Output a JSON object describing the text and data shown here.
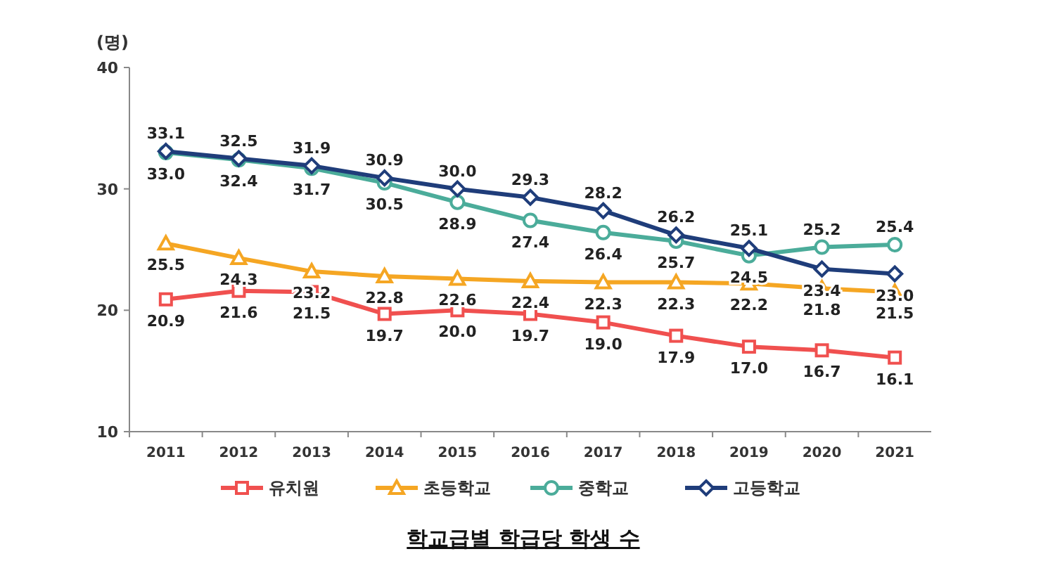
{
  "chart_data": {
    "type": "line",
    "title": "학교급별 학급당 학생 수",
    "ylabel": "(명)",
    "categories": [
      "2011",
      "2012",
      "2013",
      "2014",
      "2015",
      "2016",
      "2017",
      "2018",
      "2019",
      "2020",
      "2021"
    ],
    "series": [
      {
        "name": "유치원",
        "color": "#f0504f",
        "marker": "square",
        "values": [
          20.9,
          21.6,
          21.5,
          19.7,
          20.0,
          19.7,
          19.0,
          17.9,
          17.0,
          16.7,
          16.1
        ],
        "value_labels": [
          "20.9",
          "21.6",
          "21.5",
          "19.7",
          "20.0",
          "19.7",
          "19.0",
          "17.9",
          "17.0",
          "16.7",
          "16.1"
        ]
      },
      {
        "name": "초등학교",
        "color": "#f5a623",
        "marker": "triangle",
        "values": [
          25.5,
          24.3,
          23.2,
          22.8,
          22.6,
          22.4,
          22.3,
          22.3,
          22.2,
          21.8,
          21.5
        ],
        "value_labels": [
          "25.5",
          "24.3",
          "23.2",
          "22.8",
          "22.6",
          "22.4",
          "22.3",
          "22.3",
          "22.2",
          "21.8",
          "21.5"
        ]
      },
      {
        "name": "중학교",
        "color": "#4bac9a",
        "marker": "circle",
        "values": [
          33.0,
          32.4,
          31.7,
          30.5,
          28.9,
          27.4,
          26.4,
          25.7,
          24.5,
          25.2,
          25.4
        ],
        "value_labels": [
          "33.0",
          "32.4",
          "31.7",
          "30.5",
          "28.9",
          "27.4",
          "26.4",
          "25.7",
          "24.5",
          "25.2",
          "25.4"
        ]
      },
      {
        "name": "고등학교",
        "color": "#1f3d7a",
        "marker": "diamond",
        "values": [
          33.1,
          32.5,
          31.9,
          30.9,
          30.0,
          29.3,
          28.2,
          26.2,
          25.1,
          23.4,
          23.0
        ],
        "value_labels": [
          "33.1",
          "32.5",
          "31.9",
          "30.9",
          "30.0",
          "29.3",
          "28.2",
          "26.2",
          "25.1",
          "23.4",
          "23.0"
        ]
      }
    ],
    "ylim": [
      10,
      40
    ],
    "yticks": [
      10,
      20,
      30,
      40
    ],
    "legend": "bottom",
    "grid": false,
    "line_style": "solid"
  }
}
